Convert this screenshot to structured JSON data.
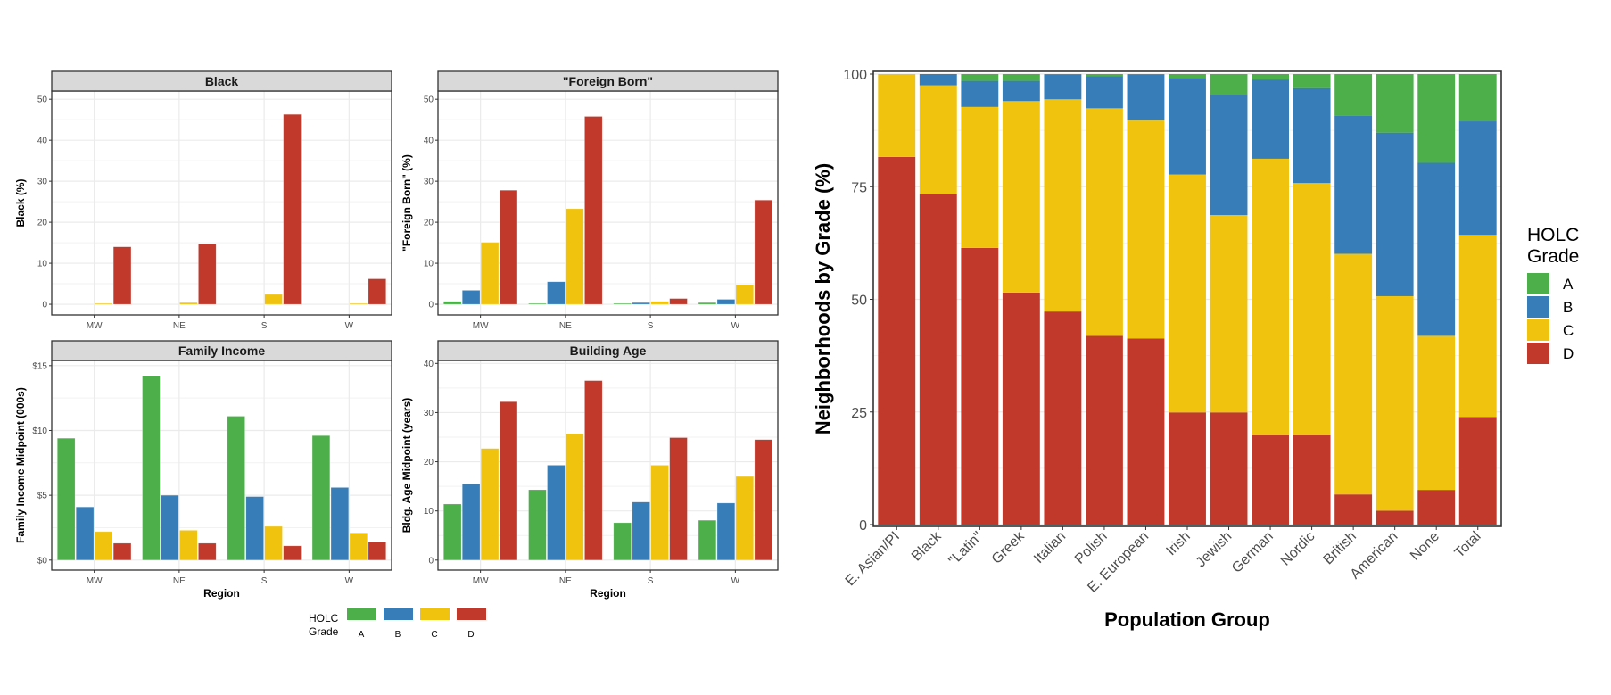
{
  "colors": {
    "A": "#4daf4a",
    "B": "#377eb8",
    "C": "#f0c30f",
    "D": "#c0392b"
  },
  "chart_data": [
    {
      "type": "bar",
      "title": "Black",
      "xlabel": "",
      "ylabel": "Black (%)",
      "categories": [
        "MW",
        "NE",
        "S",
        "W"
      ],
      "ylim": [
        0,
        52
      ],
      "yticks": [
        0,
        10,
        20,
        30,
        40,
        50
      ],
      "ytick_labels": [
        "0",
        "10",
        "20",
        "30",
        "40",
        "50"
      ],
      "series": [
        {
          "name": "A",
          "values": [
            0,
            0,
            0,
            0
          ]
        },
        {
          "name": "B",
          "values": [
            0,
            0,
            0,
            0
          ]
        },
        {
          "name": "C",
          "values": [
            0.2,
            0.4,
            2.4,
            0.2
          ]
        },
        {
          "name": "D",
          "values": [
            14.0,
            14.7,
            46.3,
            6.2
          ]
        }
      ],
      "grid": true
    },
    {
      "type": "bar",
      "title": "\"Foreign Born\"",
      "xlabel": "",
      "ylabel": "\"Foreign Born\" (%)",
      "categories": [
        "MW",
        "NE",
        "S",
        "W"
      ],
      "ylim": [
        0,
        52
      ],
      "yticks": [
        0,
        10,
        20,
        30,
        40,
        50
      ],
      "ytick_labels": [
        "0",
        "10",
        "20",
        "30",
        "40",
        "50"
      ],
      "series": [
        {
          "name": "A",
          "values": [
            0.7,
            0.2,
            0.2,
            0.4
          ]
        },
        {
          "name": "B",
          "values": [
            3.4,
            5.5,
            0.4,
            1.2
          ]
        },
        {
          "name": "C",
          "values": [
            15.1,
            23.3,
            0.7,
            4.8
          ]
        },
        {
          "name": "D",
          "values": [
            27.8,
            45.8,
            1.4,
            25.4
          ]
        }
      ],
      "grid": true
    },
    {
      "type": "bar",
      "title": "Family Income",
      "xlabel": "Region",
      "ylabel": "Family Income Midpoint (000s)",
      "categories": [
        "MW",
        "NE",
        "S",
        "W"
      ],
      "ylim": [
        0,
        15.4
      ],
      "yticks": [
        0,
        5,
        10,
        15
      ],
      "ytick_labels": [
        "$0",
        "$5",
        "$10",
        "$15"
      ],
      "series": [
        {
          "name": "A",
          "values": [
            9.4,
            14.2,
            11.1,
            9.6
          ]
        },
        {
          "name": "B",
          "values": [
            4.1,
            5.0,
            4.9,
            5.6
          ]
        },
        {
          "name": "C",
          "values": [
            2.2,
            2.3,
            2.6,
            2.1
          ]
        },
        {
          "name": "D",
          "values": [
            1.3,
            1.3,
            1.1,
            1.4
          ]
        }
      ],
      "grid": true
    },
    {
      "type": "bar",
      "title": "Building Age",
      "xlabel": "Region",
      "ylabel": "Bldg. Age Midpoint (years)",
      "categories": [
        "MW",
        "NE",
        "S",
        "W"
      ],
      "ylim": [
        0,
        40.6
      ],
      "yticks": [
        0,
        10,
        20,
        30,
        40
      ],
      "ytick_labels": [
        "0",
        "10",
        "20",
        "30",
        "40"
      ],
      "series": [
        {
          "name": "A",
          "values": [
            11.4,
            14.3,
            7.6,
            8.1
          ]
        },
        {
          "name": "B",
          "values": [
            15.5,
            19.3,
            11.8,
            11.6
          ]
        },
        {
          "name": "C",
          "values": [
            22.7,
            25.7,
            19.3,
            17.0
          ]
        },
        {
          "name": "D",
          "values": [
            32.2,
            36.5,
            24.9,
            24.5
          ]
        }
      ],
      "grid": true
    },
    {
      "type": "bar",
      "stacked": true,
      "title": "",
      "xlabel": "Population Group",
      "ylabel": "Neighborhoods by Grade (%)",
      "categories": [
        "E. Asian/PI",
        "Black",
        "\"Latin\"",
        "Greek",
        "Italian",
        "Polish",
        "E. European",
        "Irish",
        "Jewish",
        "German",
        "Nordic",
        "British",
        "American",
        "None",
        "Total"
      ],
      "ylim": [
        0,
        100
      ],
      "yticks": [
        0,
        25,
        50,
        75,
        100
      ],
      "ytick_labels": [
        "0",
        "25",
        "50",
        "75",
        "100"
      ],
      "series": [
        {
          "name": "D",
          "values": [
            81.6,
            73.3,
            61.4,
            51.5,
            47.3,
            41.9,
            41.3,
            24.9,
            24.9,
            19.8,
            19.8,
            6.7,
            3.1,
            7.7,
            23.9
          ]
        },
        {
          "name": "C",
          "values": [
            18.4,
            24.2,
            31.3,
            42.5,
            47.1,
            50.5,
            48.5,
            52.8,
            43.8,
            61.4,
            56.0,
            53.4,
            47.6,
            34.2,
            40.4
          ]
        },
        {
          "name": "B",
          "values": [
            0.0,
            2.5,
            5.8,
            4.5,
            5.5,
            7.1,
            10.1,
            21.4,
            26.7,
            17.6,
            21.1,
            30.6,
            36.3,
            38.4,
            25.2
          ]
        },
        {
          "name": "A",
          "values": [
            0.0,
            0.0,
            1.5,
            1.5,
            0.1,
            0.5,
            0.1,
            0.9,
            4.6,
            1.2,
            3.1,
            9.3,
            13.0,
            19.7,
            10.5
          ]
        }
      ],
      "legend": {
        "title": "HOLC Grade",
        "title_lines": [
          "HOLC",
          "Grade"
        ],
        "keys": [
          "A",
          "B",
          "C",
          "D"
        ],
        "position": "right"
      },
      "grid": true
    }
  ],
  "shared_legend": {
    "title_lines": [
      "HOLC",
      "Grade"
    ],
    "keys": [
      "A",
      "B",
      "C",
      "D"
    ],
    "position": "bottom"
  }
}
